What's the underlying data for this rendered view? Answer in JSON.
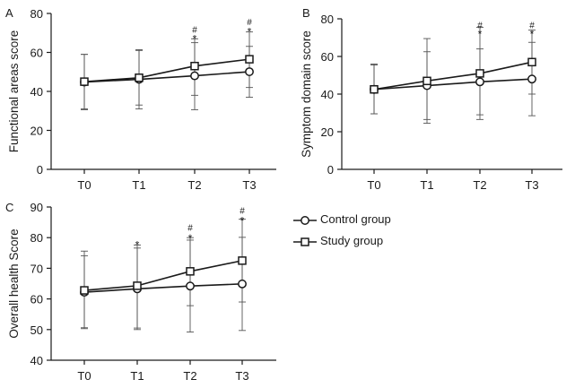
{
  "legend": {
    "control": "Control group",
    "study": "Study group"
  },
  "chart_data": [
    {
      "id": "A",
      "panel_label": "A",
      "type": "line",
      "ylabel": "Functional areas score",
      "xlabel": "",
      "categories": [
        "T0",
        "T1",
        "T2",
        "T3"
      ],
      "ylim": [
        0,
        80
      ],
      "yticks": [
        0,
        20,
        40,
        60,
        80
      ],
      "series": [
        {
          "name": "Control group",
          "marker": "circle",
          "values": [
            44.8,
            46.2,
            48.0,
            50.1
          ],
          "err_low": [
            30.6,
            31.0,
            30.6,
            37.0
          ],
          "err_high": [
            59.0,
            61.4,
            65.0,
            63.1
          ]
        },
        {
          "name": "Study group",
          "marker": "square",
          "values": [
            45.0,
            47.0,
            53.0,
            56.5
          ],
          "err_low": [
            31.0,
            33.0,
            38.0,
            42.0
          ],
          "err_high": [
            59.0,
            61.0,
            67.0,
            70.5
          ]
        }
      ],
      "annotations": [
        {
          "category": "T2",
          "text": "#",
          "value": 72.0
        },
        {
          "category": "T2",
          "text": "*",
          "value": 68.2
        },
        {
          "category": "T3",
          "text": "#",
          "value": 75.8
        },
        {
          "category": "T3",
          "text": "*",
          "value": 72.0
        }
      ]
    },
    {
      "id": "B",
      "panel_label": "B",
      "type": "line",
      "ylabel": "Symptom domain score",
      "xlabel": "",
      "categories": [
        "T0",
        "T1",
        "T2",
        "T3"
      ],
      "ylim": [
        0,
        80
      ],
      "yticks": [
        0,
        20,
        40,
        60,
        80
      ],
      "series": [
        {
          "name": "Control group",
          "marker": "circle",
          "values": [
            42.5,
            44.5,
            46.5,
            48.0
          ],
          "err_low": [
            29.5,
            26.5,
            29.0,
            28.5
          ],
          "err_high": [
            55.5,
            62.5,
            64.0,
            67.5
          ]
        },
        {
          "name": "Study group",
          "marker": "square",
          "values": [
            42.5,
            47.0,
            51.0,
            57.0
          ],
          "err_low": [
            29.5,
            24.5,
            26.5,
            40.0
          ],
          "err_high": [
            56.0,
            69.5,
            75.5,
            74.0
          ]
        }
      ],
      "annotations": [
        {
          "category": "T2",
          "text": "#",
          "value": 77.0
        },
        {
          "category": "T2",
          "text": "*",
          "value": 73.3
        },
        {
          "category": "T3",
          "text": "#",
          "value": 77.0
        },
        {
          "category": "T3",
          "text": "*",
          "value": 73.3
        }
      ]
    },
    {
      "id": "C",
      "panel_label": "C",
      "type": "line",
      "ylabel": "Overall health Score",
      "xlabel": "",
      "categories": [
        "T0",
        "T1",
        "T2",
        "T3"
      ],
      "ylim": [
        40,
        90
      ],
      "yticks": [
        40,
        50,
        60,
        70,
        80,
        90
      ],
      "series": [
        {
          "name": "Control group",
          "marker": "circle",
          "values": [
            62.2,
            63.3,
            64.2,
            64.9
          ],
          "err_low": [
            50.3,
            50.0,
            49.2,
            49.7
          ],
          "err_high": [
            74.1,
            76.6,
            79.2,
            80.1
          ]
        },
        {
          "name": "Study group",
          "marker": "square",
          "values": [
            62.8,
            64.3,
            69.0,
            72.5
          ],
          "err_low": [
            50.6,
            50.5,
            57.8,
            59.0
          ],
          "err_high": [
            75.6,
            77.6,
            80.0,
            86.0
          ]
        }
      ],
      "annotations": [
        {
          "category": "T1",
          "text": "*",
          "value": 78.4
        },
        {
          "category": "T2",
          "text": "#",
          "value": 83.4
        },
        {
          "category": "T2",
          "text": "*",
          "value": 80.7
        },
        {
          "category": "T3",
          "text": "#",
          "value": 89.0
        },
        {
          "category": "T3",
          "text": "*",
          "value": 86.4
        }
      ]
    }
  ]
}
